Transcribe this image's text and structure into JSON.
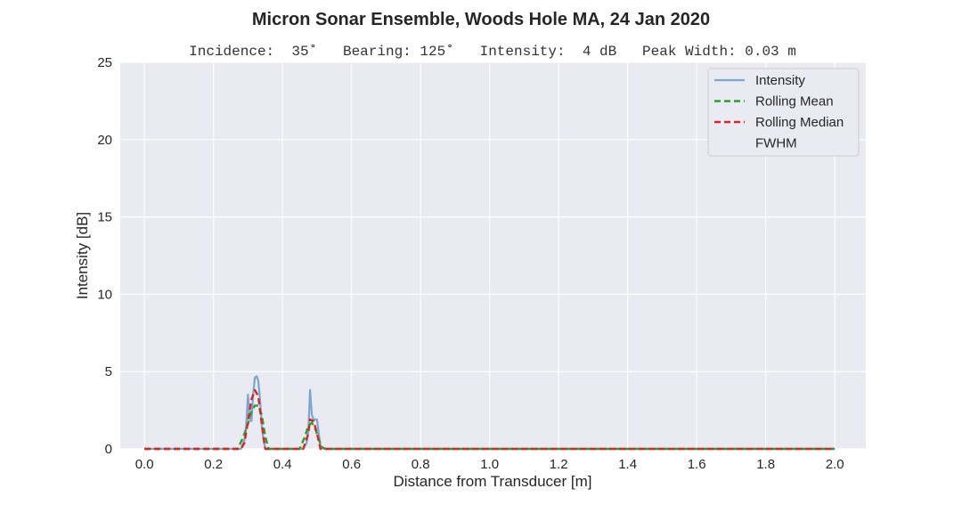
{
  "chart_data": {
    "type": "line",
    "title": "Micron Sonar Ensemble, Woods Hole MA, 24 Jan 2020",
    "subtitle": "Incidence:  35˚   Bearing: 125˚   Intensity:  4 dB   Peak Width: 0.03 m",
    "xlabel": "Distance from Transducer [m]",
    "ylabel": "Intensity [dB]",
    "xlim": [
      -0.07,
      2.09
    ],
    "ylim": [
      0,
      25
    ],
    "xticks": [
      "0.0",
      "0.2",
      "0.4",
      "0.6",
      "0.8",
      "1.0",
      "1.2",
      "1.4",
      "1.6",
      "1.8",
      "2.0"
    ],
    "yticks": [
      "0",
      "5",
      "10",
      "15",
      "20",
      "25"
    ],
    "grid": true,
    "legend_position": "top-right",
    "background_color": "#eaeaf2",
    "series": [
      {
        "name": "Intensity",
        "color": "#7aa6cc",
        "style": "solid",
        "x": [
          0.0,
          0.28,
          0.29,
          0.295,
          0.3,
          0.305,
          0.31,
          0.315,
          0.32,
          0.325,
          0.33,
          0.335,
          0.34,
          0.345,
          0.35,
          0.36,
          0.46,
          0.47,
          0.475,
          0.48,
          0.485,
          0.49,
          0.495,
          0.5,
          0.505,
          0.51,
          0.52,
          2.0
        ],
        "y": [
          0,
          0,
          0.6,
          1.5,
          3.5,
          2.0,
          1.8,
          3.5,
          4.6,
          4.7,
          4.4,
          3.2,
          1.5,
          0.6,
          0,
          0,
          0,
          0.4,
          1.2,
          3.8,
          2.2,
          1.9,
          1.9,
          1.9,
          1.0,
          0.2,
          0,
          0
        ]
      },
      {
        "name": "Rolling Mean",
        "color": "#2ca02c",
        "style": "dashed",
        "x": [
          0.0,
          0.27,
          0.285,
          0.3,
          0.31,
          0.32,
          0.33,
          0.34,
          0.35,
          0.36,
          0.45,
          0.465,
          0.475,
          0.485,
          0.495,
          0.505,
          0.515,
          0.525,
          2.0
        ],
        "y": [
          0,
          0,
          0.7,
          1.6,
          2.4,
          2.8,
          2.8,
          2.2,
          0.8,
          0,
          0,
          0.8,
          1.5,
          1.7,
          1.3,
          0.6,
          0.1,
          0,
          0
        ]
      },
      {
        "name": "Rolling Median",
        "color": "#d62728",
        "style": "dashed",
        "x": [
          0.0,
          0.28,
          0.29,
          0.3,
          0.31,
          0.32,
          0.325,
          0.33,
          0.34,
          0.35,
          0.46,
          0.475,
          0.48,
          0.49,
          0.5,
          0.51,
          2.0
        ],
        "y": [
          0,
          0,
          0.4,
          1.8,
          3.2,
          3.8,
          3.6,
          3.4,
          1.6,
          0,
          0,
          1.0,
          1.9,
          1.8,
          1.0,
          0,
          0
        ]
      },
      {
        "name": "FWHM",
        "color": "none",
        "style": "none",
        "x": [],
        "y": []
      }
    ]
  }
}
